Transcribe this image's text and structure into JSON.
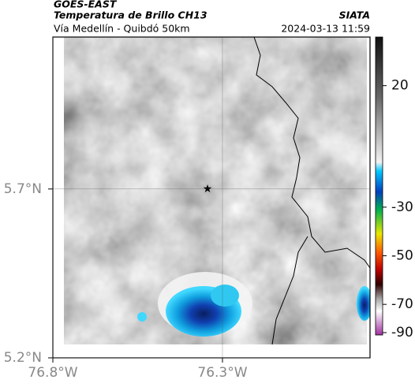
{
  "header": {
    "title": "GOES-EAST",
    "subtitle": "Temperatura de Brillo CH13",
    "source": "SIATA",
    "region": "Vía Medellín - Quibdó 50km",
    "timestamp": "2024-03-13 11:59"
  },
  "map": {
    "lat_range": [
      5.2,
      6.15
    ],
    "lon_range": [
      -76.8,
      -75.865
    ],
    "grid": true,
    "lat_ticks": [
      {
        "value": 5.7,
        "label": "5.7°N"
      },
      {
        "value": 5.2,
        "label": "5.2°N"
      }
    ],
    "lon_ticks": [
      {
        "value": -76.8,
        "label": "76.8°W"
      },
      {
        "value": -76.3,
        "label": "76.3°W"
      }
    ]
  },
  "colorbar": {
    "range": [
      -92,
      40
    ],
    "ticks": [
      20,
      -30,
      -50,
      -70,
      -90
    ]
  }
}
